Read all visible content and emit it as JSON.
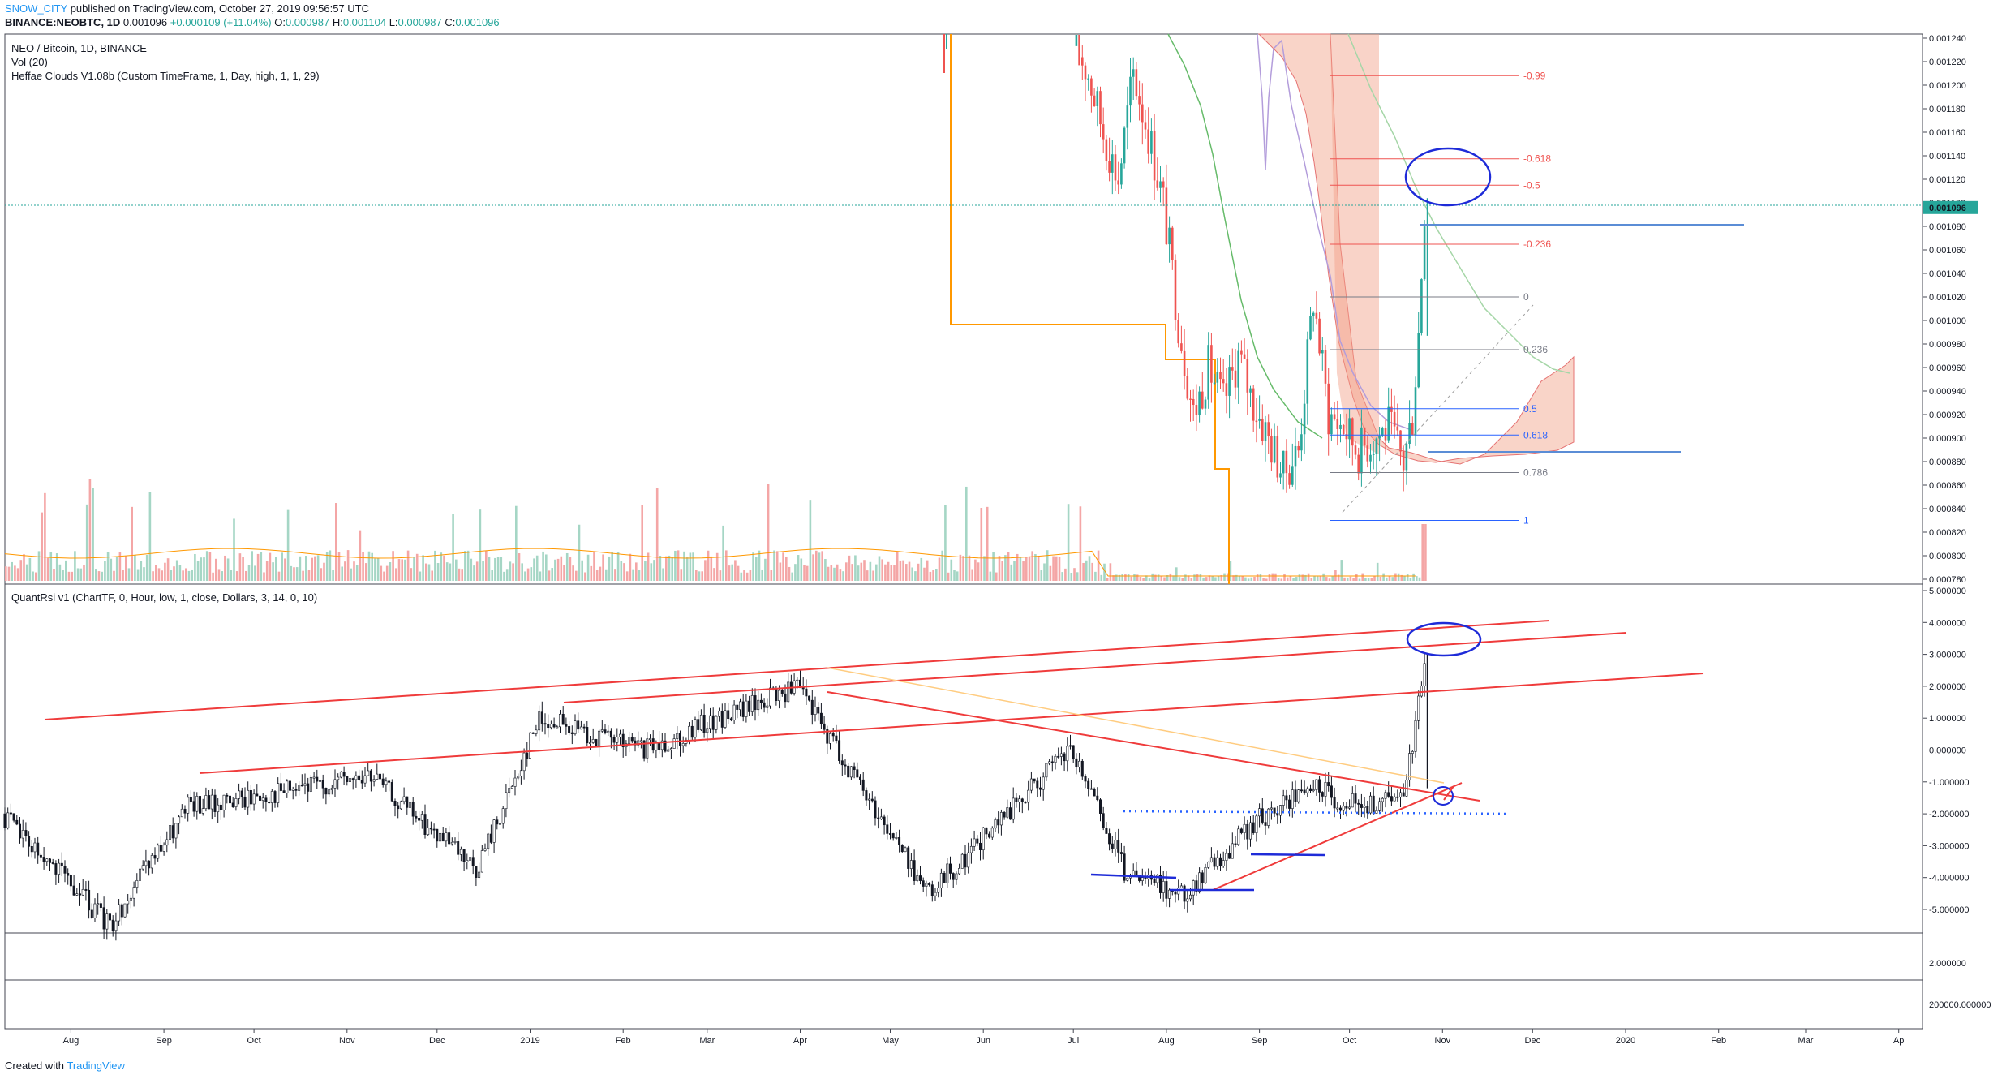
{
  "header": {
    "author": "SNOW_CITY",
    "published": "published on TradingView.com, October 27, 2019 09:56:57 UTC",
    "symbol": "BINANCE:NEOBTC, 1D",
    "ohlc": {
      "last": "0.001096",
      "change": "+0.000109 (+11.04%)",
      "o_label": "O:",
      "o": "0.000987",
      "h_label": "H:",
      "h": "0.001104",
      "l_label": "L:",
      "l": "0.000987",
      "c_label": "C:",
      "c": "0.001096"
    }
  },
  "main_pane": {
    "legend": [
      "NEO / Bitcoin, 1D, BINANCE",
      "Vol (20)",
      "Heffae Clouds V1.08b (Custom TimeFrame, 1, Day, high, 1, 1, 29)"
    ],
    "price_labels": [
      "0.001240",
      "0.001220",
      "0.001200",
      "0.001180",
      "0.001160",
      "0.001140",
      "0.001120",
      "0.001100",
      "0.001080",
      "0.001060",
      "0.001040",
      "0.001020",
      "0.001000",
      "0.000980",
      "0.000960",
      "0.000940",
      "0.000920",
      "0.000900",
      "0.000880",
      "0.000860",
      "0.000840",
      "0.000820",
      "0.000800",
      "0.000780"
    ],
    "last_price_badge": "0.001096",
    "fib_levels": [
      {
        "label": "-0.99",
        "color": "#ef5350"
      },
      {
        "label": "-0.618",
        "color": "#ef5350"
      },
      {
        "label": "-0.5",
        "color": "#ef5350"
      },
      {
        "label": "-0.236",
        "color": "#ef5350"
      },
      {
        "label": "0",
        "color": "#787b86"
      },
      {
        "label": "0.236",
        "color": "#787b86"
      },
      {
        "label": "0.5",
        "color": "#2962ff"
      },
      {
        "label": "0.618",
        "color": "#2962ff"
      },
      {
        "label": "0.786",
        "color": "#787b86"
      },
      {
        "label": "1",
        "color": "#2962ff"
      }
    ]
  },
  "rsi_pane": {
    "legend": "QuantRsi v1 (ChartTF, 0, Hour, low, 1, close, Dollars, 3, 14, 0, 10)",
    "labels": [
      "5.000000",
      "4.000000",
      "3.000000",
      "2.000000",
      "1.000000",
      "0.000000",
      "-1.000000",
      "-2.000000",
      "-3.000000",
      "-4.000000",
      "-5.000000"
    ]
  },
  "pane3": {
    "label": "2.000000"
  },
  "pane4": {
    "label": "200000.000000"
  },
  "time_axis": [
    "Aug",
    "Sep",
    "Oct",
    "Nov",
    "Dec",
    "2019",
    "Feb",
    "Mar",
    "Apr",
    "May",
    "Jun",
    "Jul",
    "Aug",
    "Sep",
    "Oct",
    "Nov",
    "Dec",
    "2020",
    "Feb",
    "Mar",
    "Ap"
  ],
  "footer": {
    "created": "Created with",
    "brand": "TradingView"
  },
  "colors": {
    "up": "#26a69a",
    "down": "#ef5350",
    "accent": "#2962ff",
    "cloud": "#f5b7a3",
    "ma": "#4caf50",
    "step": "#ff9800",
    "ann": "#1e2bd8"
  },
  "chart_data": [
    {
      "type": "candlestick",
      "title": "NEO / Bitcoin, 1D, BINANCE",
      "x_range": [
        "2018-07-10",
        "2019-10-27"
      ],
      "ylim": [
        0.00078,
        0.00124
      ],
      "visible_segment": {
        "x": [
          "2019-07-02",
          "2019-07-07",
          "2019-07-12",
          "2019-07-17",
          "2019-07-22",
          "2019-07-27",
          "2019-08-01",
          "2019-08-06",
          "2019-08-11",
          "2019-08-16",
          "2019-08-21",
          "2019-08-26",
          "2019-08-31",
          "2019-09-05",
          "2019-09-10",
          "2019-09-15",
          "2019-09-20",
          "2019-09-25",
          "2019-09-30",
          "2019-10-05",
          "2019-10-10",
          "2019-10-15",
          "2019-10-20",
          "2019-10-23",
          "2019-10-25",
          "2019-10-27"
        ],
        "close": [
          0.00124,
          0.00121,
          0.00116,
          0.00112,
          0.00121,
          0.00116,
          0.0011,
          0.001,
          0.00092,
          0.00096,
          0.00093,
          0.00097,
          0.00093,
          0.0009,
          0.00087,
          0.00089,
          0.00102,
          0.00092,
          0.00091,
          0.00089,
          0.0009,
          0.00091,
          0.00088,
          0.00092,
          0.00099,
          0.001096
        ]
      },
      "last_close": 0.001096
    },
    {
      "type": "line",
      "title": "QuantRsi v1",
      "ylim": [
        -5.5,
        5.0
      ],
      "x": [
        "2018-07-10",
        "2018-08-15",
        "2018-09-10",
        "2018-10-05",
        "2018-11-10",
        "2018-12-15",
        "2019-01-05",
        "2019-02-10",
        "2019-03-01",
        "2019-04-01",
        "2019-05-05",
        "2019-05-15",
        "2019-06-15",
        "2019-07-01",
        "2019-07-20",
        "2019-08-08",
        "2019-09-01",
        "2019-09-20",
        "2019-10-05",
        "2019-10-20",
        "2019-10-25",
        "2019-10-27"
      ],
      "values": [
        -2.0,
        -5.5,
        -1.8,
        -1.4,
        -0.8,
        -3.8,
        1.0,
        0.0,
        0.8,
        2.0,
        -3.0,
        -4.5,
        -1.5,
        0.0,
        -4.0,
        -4.5,
        -2.2,
        -1.2,
        -1.8,
        -1.5,
        1.5,
        3.0
      ]
    }
  ]
}
